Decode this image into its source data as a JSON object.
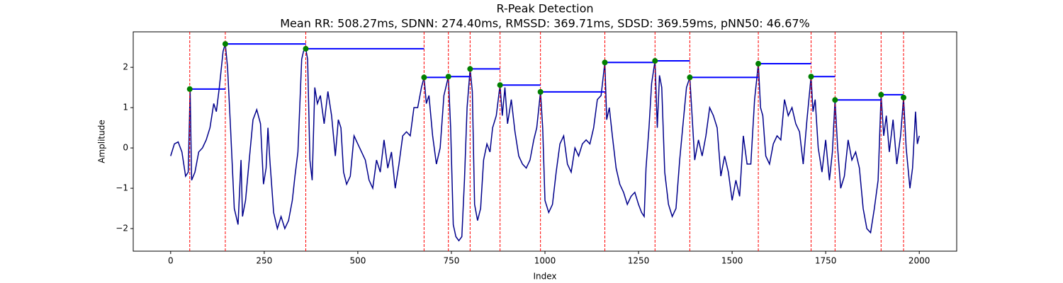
{
  "chart_data": {
    "type": "line",
    "title": "R-Peak Detection",
    "subtitle": "Mean RR: 508.27ms, SDNN: 274.40ms, RMSSD: 369.71ms, SDSD: 369.59ms, pNN50: 46.67%",
    "x_label": "Index",
    "y_label": "Amplitude",
    "color": "#00008b",
    "x": [
      0,
      10,
      20,
      30,
      40,
      47,
      52,
      56,
      65,
      75,
      85,
      95,
      105,
      115,
      122,
      130,
      140,
      146,
      152,
      160,
      170,
      180,
      188,
      192,
      200,
      210,
      220,
      230,
      240,
      248,
      255,
      260,
      265,
      275,
      285,
      295,
      305,
      315,
      325,
      332,
      340,
      350,
      355,
      361,
      366,
      372,
      378,
      385,
      392,
      400,
      410,
      420,
      430,
      440,
      448,
      455,
      462,
      470,
      480,
      490,
      500,
      510,
      520,
      530,
      540,
      550,
      560,
      570,
      580,
      590,
      600,
      610,
      620,
      630,
      640,
      650,
      660,
      670,
      677,
      683,
      690,
      700,
      710,
      720,
      730,
      742,
      748,
      755,
      762,
      770,
      778,
      785,
      792,
      800,
      806,
      812,
      820,
      828,
      836,
      845,
      853,
      860,
      870,
      880,
      886,
      893,
      900,
      910,
      920,
      930,
      940,
      950,
      960,
      970,
      978,
      988,
      994,
      1000,
      1010,
      1020,
      1030,
      1040,
      1050,
      1060,
      1070,
      1080,
      1090,
      1100,
      1110,
      1120,
      1130,
      1140,
      1150,
      1160,
      1165,
      1172,
      1180,
      1190,
      1200,
      1210,
      1220,
      1230,
      1240,
      1250,
      1258,
      1265,
      1270,
      1278,
      1285,
      1294,
      1300,
      1306,
      1312,
      1320,
      1330,
      1340,
      1350,
      1360,
      1370,
      1378,
      1387,
      1393,
      1400,
      1410,
      1420,
      1430,
      1440,
      1450,
      1460,
      1470,
      1480,
      1490,
      1500,
      1510,
      1520,
      1530,
      1540,
      1550,
      1560,
      1570,
      1576,
      1582,
      1590,
      1600,
      1610,
      1620,
      1630,
      1640,
      1650,
      1660,
      1670,
      1680,
      1690,
      1700,
      1711,
      1716,
      1722,
      1730,
      1740,
      1750,
      1760,
      1768,
      1775,
      1782,
      1790,
      1800,
      1810,
      1820,
      1830,
      1840,
      1850,
      1860,
      1870,
      1880,
      1890,
      1898,
      1905,
      1912,
      1920,
      1930,
      1940,
      1950,
      1958,
      1965,
      1975,
      1982,
      1990,
      1995,
      2000
    ],
    "values": [
      -0.2,
      0.1,
      0.15,
      -0.1,
      -0.7,
      -0.6,
      1.45,
      -0.8,
      -0.6,
      -0.1,
      0.0,
      0.2,
      0.5,
      1.1,
      0.9,
      1.5,
      2.4,
      2.58,
      2.0,
      0.5,
      -1.5,
      -1.9,
      -0.3,
      -1.7,
      -1.3,
      -0.3,
      0.7,
      0.95,
      0.6,
      -0.9,
      -0.5,
      0.5,
      -0.3,
      -1.6,
      -2.0,
      -1.7,
      -2.0,
      -1.8,
      -1.3,
      -0.7,
      -0.1,
      2.2,
      2.4,
      2.46,
      2.2,
      -0.3,
      -0.8,
      1.5,
      1.1,
      1.3,
      0.6,
      1.4,
      0.8,
      -0.2,
      0.7,
      0.5,
      -0.6,
      -0.9,
      -0.7,
      0.3,
      0.1,
      -0.1,
      -0.3,
      -0.8,
      -1.0,
      -0.3,
      -0.6,
      0.2,
      -0.5,
      -0.1,
      -1.0,
      -0.4,
      0.3,
      0.4,
      0.3,
      1.0,
      1.0,
      1.5,
      1.75,
      1.1,
      1.3,
      0.3,
      -0.4,
      0.0,
      1.3,
      1.77,
      0.5,
      -1.9,
      -2.2,
      -2.3,
      -2.2,
      -0.8,
      1.0,
      1.96,
      1.4,
      -1.4,
      -1.8,
      -1.5,
      -0.3,
      0.1,
      -0.1,
      0.5,
      0.8,
      1.56,
      0.8,
      1.5,
      0.6,
      1.2,
      0.4,
      -0.2,
      -0.4,
      -0.5,
      -0.3,
      0.2,
      0.5,
      1.39,
      0.5,
      -1.3,
      -1.6,
      -1.4,
      -0.6,
      0.1,
      0.3,
      -0.4,
      -0.6,
      0.0,
      -0.2,
      0.1,
      0.2,
      0.1,
      0.5,
      1.2,
      1.3,
      2.12,
      0.7,
      1.0,
      0.3,
      -0.5,
      -0.9,
      -1.1,
      -1.4,
      -1.2,
      -1.1,
      -1.4,
      -1.6,
      -1.7,
      -0.5,
      0.5,
      1.6,
      2.16,
      0.5,
      1.8,
      1.5,
      -0.6,
      -1.4,
      -1.7,
      -1.5,
      -0.3,
      0.7,
      1.5,
      1.75,
      0.8,
      -0.3,
      0.2,
      -0.2,
      0.3,
      1.0,
      0.8,
      0.5,
      -0.7,
      -0.2,
      -0.6,
      -1.3,
      -0.8,
      -1.2,
      0.3,
      -0.4,
      -0.4,
      1.2,
      2.09,
      1.0,
      0.8,
      -0.2,
      -0.4,
      0.1,
      0.3,
      0.2,
      1.2,
      0.8,
      1.0,
      0.6,
      0.4,
      -0.4,
      0.7,
      1.77,
      0.9,
      1.2,
      0.0,
      -0.6,
      0.2,
      -0.8,
      -0.1,
      1.19,
      0.0,
      -1.0,
      -0.7,
      0.2,
      -0.3,
      -0.1,
      -0.5,
      -1.5,
      -2.0,
      -2.1,
      -1.5,
      -0.8,
      1.32,
      0.3,
      0.8,
      -0.1,
      0.7,
      -0.4,
      0.3,
      1.25,
      0.0,
      -1.0,
      -0.5,
      0.9,
      0.1,
      0.3
    ],
    "peaks": {
      "x": [
        51,
        146,
        361,
        677,
        742,
        800,
        880,
        988,
        1160,
        1294,
        1387,
        1570,
        1711,
        1775,
        1898,
        1958
      ],
      "values": [
        1.46,
        2.58,
        2.46,
        1.75,
        1.77,
        1.96,
        1.56,
        1.39,
        2.12,
        2.16,
        1.75,
        2.09,
        1.77,
        1.19,
        1.32,
        1.25
      ],
      "color": "#008000",
      "line_color": "#ff0000",
      "interval_color": "#0000ff"
    },
    "xlim": [
      -100,
      2100
    ],
    "ylim": [
      -2.56,
      2.88
    ],
    "xticks": [
      0,
      250,
      500,
      750,
      1000,
      1250,
      1500,
      1750,
      2000
    ],
    "yticks": [
      {
        "value": -2,
        "label": "−2"
      },
      {
        "value": -1,
        "label": "−1"
      },
      0,
      1,
      2
    ]
  }
}
